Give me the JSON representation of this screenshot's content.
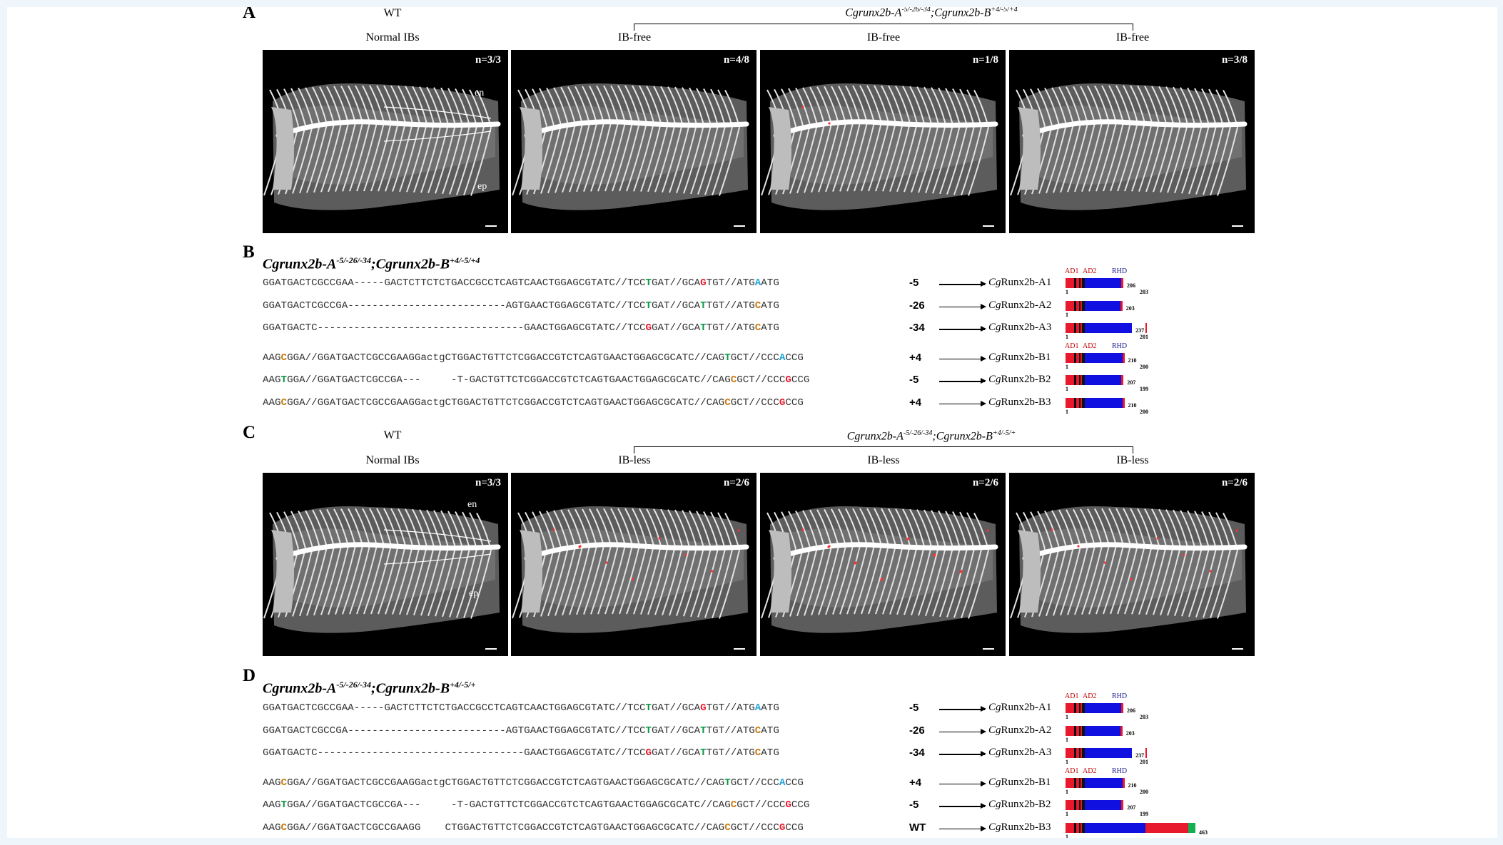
{
  "panels": {
    "A": {
      "letter": "A",
      "wt_label": "WT",
      "genotype": "Cgrunx2b-A",
      "genotype_sup": "-5/-26/-34",
      "genotype2": ";Cgrunx2b-B",
      "genotype2_sup": "+4/-5/+4",
      "columns": [
        "Normal IBs",
        "IB-free",
        "IB-free",
        "IB-free"
      ],
      "counts": [
        "n=3/3",
        "n=4/8",
        "n=1/8",
        "n=3/8"
      ],
      "labels": {
        "en": "en",
        "ep": "ep"
      }
    },
    "B": {
      "letter": "B",
      "title": "Cgrunx2b-A",
      "title_sup": "-5/-26/-34",
      "title2": ";Cgrunx2b-B",
      "title2_sup": "+4/-5/+4",
      "domains": {
        "ad1": "AD1",
        "ad2": "AD2",
        "rhd": "RHD"
      },
      "rows": [
        {
          "seq": "GGATGACTCGCCGAA-----GACTCTTCTCTGACCGCCTCAGTCAACTGGAGCGTATC//TCCTGAT//GCAGTGT//ATGAATG",
          "indel": "-5",
          "prot_it": "Cg",
          "prot": "Runx2b-A1",
          "len": "206",
          "stop": "203"
        },
        {
          "seq": "GGATGACTCGCCGA--------------------------AGTGAACTGGAGCGTATC//TCCTGAT//GCATTGT//ATGCATG",
          "indel": "-26",
          "prot_it": "Cg",
          "prot": "Runx2b-A2",
          "len": "203",
          "stop": ""
        },
        {
          "seq": "GGATGACTC----------------------------------GAACTGGAGCGTATC//TCCGGAT//GCATTGT//ATGCATG",
          "indel": "-34",
          "prot_it": "Cg",
          "prot": "Runx2b-A3",
          "len": "237",
          "stop": "201"
        },
        {
          "seq": "AAGCGGA//GGATGACTCGCCGAAGGactgCTGGACTGTTCTCGGACCGTCTCAGTGAACTGGAGCGCATC//CAGTGCT//CCCACCG",
          "indel": "+4",
          "prot_it": "Cg",
          "prot": "Runx2b-B1",
          "len": "210",
          "stop": "200"
        },
        {
          "seq": "AAGTGGA//GGATGACTCGCCGA---     -T-GACTGTTCTCGGACCGTCTCAGTGAACTGGAGCGCATC//CAGCGCT//CCCGCCG",
          "indel": "-5",
          "prot_it": "Cg",
          "prot": "Runx2b-B2",
          "len": "207",
          "stop": "199"
        },
        {
          "seq": "AAGCGGA//GGATGACTCGCCGAAGGactgCTGGACTGTTCTCGGACCGTCTCAGTGAACTGGAGCGCATC//CAGCGCT//CCCGCCG",
          "indel": "+4",
          "prot_it": "Cg",
          "prot": "Runx2b-B3",
          "len": "210",
          "stop": "200"
        }
      ],
      "start": "1"
    },
    "C": {
      "letter": "C",
      "wt_label": "WT",
      "genotype": "Cgrunx2b-A",
      "genotype_sup": "-5/-26/-34",
      "genotype2": ";Cgrunx2b-B",
      "genotype2_sup": "+4/-5/+",
      "columns": [
        "Normal IBs",
        "IB-less",
        "IB-less",
        "IB-less"
      ],
      "counts": [
        "n=3/3",
        "n=2/6",
        "n=2/6",
        "n=2/6"
      ],
      "labels": {
        "en": "en",
        "ep": "ep"
      }
    },
    "D": {
      "letter": "D",
      "title": "Cgrunx2b-A",
      "title_sup": "-5/-26/-34",
      "title2": ";Cgrunx2b-B",
      "title2_sup": "+4/-5/+",
      "domains": {
        "ad1": "AD1",
        "ad2": "AD2",
        "rhd": "RHD"
      },
      "rows": [
        {
          "seq": "GGATGACTCGCCGAA-----GACTCTTCTCTGACCGCCTCAGTCAACTGGAGCGTATC//TCCTGAT//GCAGTGT//ATGAATG",
          "indel": "-5",
          "prot_it": "Cg",
          "prot": "Runx2b-A1",
          "len": "206",
          "stop": "203"
        },
        {
          "seq": "GGATGACTCGCCGA--------------------------AGTGAACTGGAGCGTATC//TCCTGAT//GCATTGT//ATGCATG",
          "indel": "-26",
          "prot_it": "Cg",
          "prot": "Runx2b-A2",
          "len": "203",
          "stop": ""
        },
        {
          "seq": "GGATGACTC----------------------------------GAACTGGAGCGTATC//TCCGGAT//GCATTGT//ATGCATG",
          "indel": "-34",
          "prot_it": "Cg",
          "prot": "Runx2b-A3",
          "len": "237",
          "stop": "201"
        },
        {
          "seq": "AAGCGGA//GGATGACTCGCCGAAGGactgCTGGACTGTTCTCGGACCGTCTCAGTGAACTGGAGCGCATC//CAGTGCT//CCCACCG",
          "indel": "+4",
          "prot_it": "Cg",
          "prot": "Runx2b-B1",
          "len": "210",
          "stop": "200"
        },
        {
          "seq": "AAGTGGA//GGATGACTCGCCGA---     -T-GACTGTTCTCGGACCGTCTCAGTGAACTGGAGCGCATC//CAGCGCT//CCCGCCG",
          "indel": "-5",
          "prot_it": "Cg",
          "prot": "Runx2b-B2",
          "len": "207",
          "stop": "199"
        },
        {
          "seq": "AAGCGGA//GGATGACTCGCCGAAGG    CTGGACTGTTCTCGGACCGTCTCAGTGAACTGGAGCGCATC//CAGCGCT//CCCGCCG",
          "indel": "WT",
          "prot_it": "Cg",
          "prot": "Runx2b-B3",
          "len": "463",
          "stop": ""
        }
      ],
      "start": "1"
    }
  },
  "colors": {
    "red": "#e8192c",
    "blue": "#1010e0",
    "gray": "#8a8a8a",
    "green": "#12b050",
    "domain_red": "#c00000",
    "domain_blue": "#1a1a8c"
  }
}
